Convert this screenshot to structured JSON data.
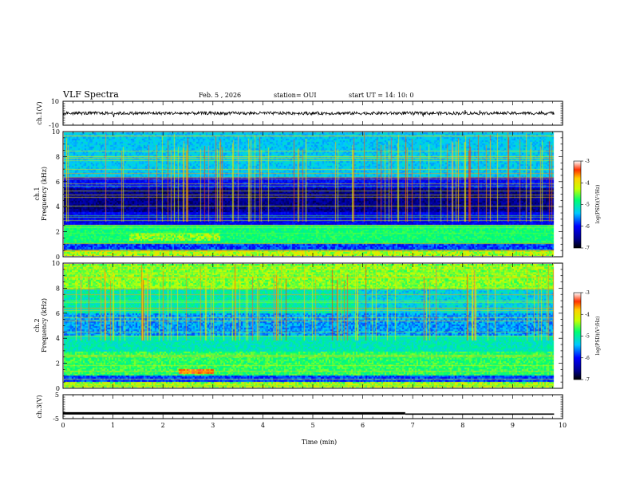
{
  "header": {
    "title": "VLF Spectra",
    "date": "Feb. 5 , 2026",
    "station": "station= OUI",
    "start": "start UT = 14: 10: 0"
  },
  "chart_data": [
    {
      "type": "line",
      "panel": "ch1-waveform",
      "ylabel": "ch.1(V)",
      "ylim": [
        -10,
        10
      ],
      "yticks": [
        "10",
        "-10"
      ],
      "xlim": [
        0,
        10
      ],
      "baseline_value": 0,
      "grid": false
    },
    {
      "type": "heatmap",
      "panel": "ch1-spectrogram",
      "ylabel_top": "ch.1",
      "ylabel": "Frequency (kHz)",
      "ylim": [
        0,
        10
      ],
      "yticks": [
        "0",
        "2",
        "4",
        "6",
        "8",
        "10"
      ],
      "xlim": [
        0,
        10
      ],
      "data_end_min": 9.83,
      "colorbar": {
        "label": "log(PSD)(V²/Hz)",
        "ticks": [
          "-3",
          "-4",
          "-5",
          "-6",
          "-7"
        ],
        "range": [
          -7,
          -3
        ]
      }
    },
    {
      "type": "heatmap",
      "panel": "ch2-spectrogram",
      "ylabel_top": "ch.2",
      "ylabel": "Frequency (kHz)",
      "ylim": [
        0,
        10
      ],
      "yticks": [
        "0",
        "2",
        "4",
        "6",
        "8",
        "10"
      ],
      "xlim": [
        0,
        10
      ],
      "data_end_min": 9.83,
      "colorbar": {
        "label": "log(PSD)(V²/Hz)",
        "ticks": [
          "-3",
          "-4",
          "-5",
          "-6",
          "-7"
        ],
        "range": [
          -7,
          -3
        ]
      }
    },
    {
      "type": "line",
      "panel": "ch3-waveform",
      "ylabel": "ch.3(V)",
      "ylim": [
        -5,
        5
      ],
      "yticks": [
        "5",
        "-5"
      ],
      "xlim": [
        0,
        10
      ],
      "xlabel": "Time (min)",
      "xticks": [
        "0",
        "1",
        "2",
        "3",
        "4",
        "5",
        "6",
        "7",
        "8",
        "9",
        "10"
      ],
      "series": [
        {
          "x": [
            0,
            6.85
          ],
          "values": [
            -2.8,
            -2.8
          ]
        },
        {
          "x": [
            6.85,
            9.83
          ],
          "values": [
            -3.1,
            -3.1
          ]
        }
      ]
    }
  ]
}
